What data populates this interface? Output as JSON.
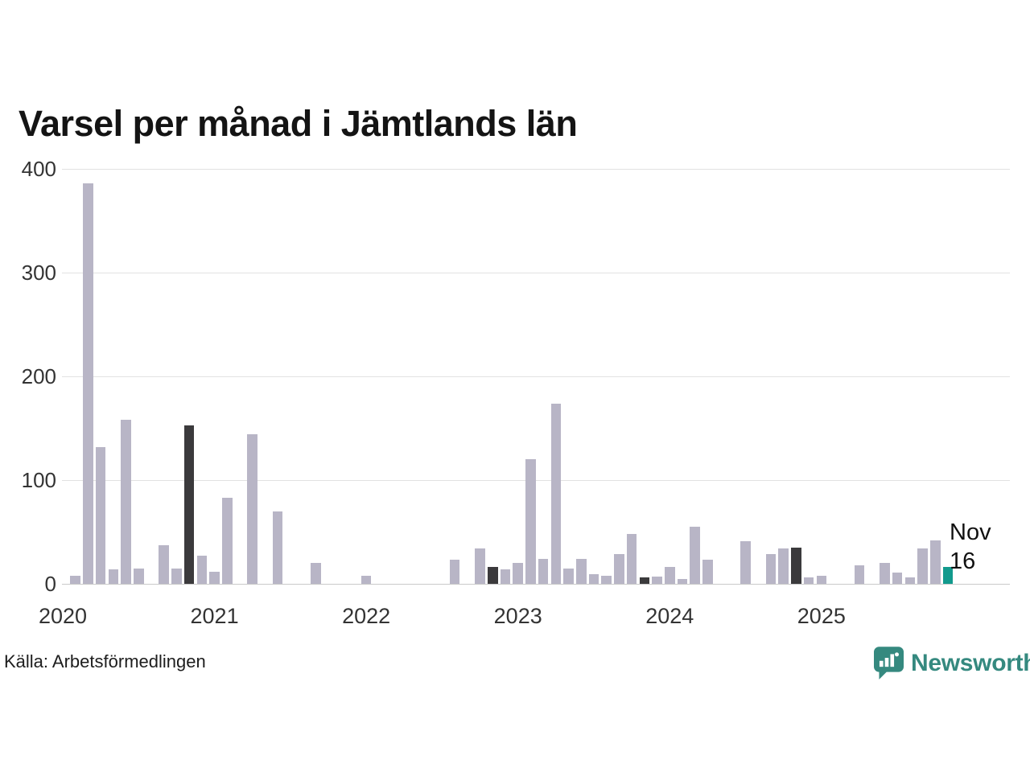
{
  "page": {
    "title": "Varsel per månad i Jämtlands län",
    "source": "Källa: Arbetsförmedlingen",
    "logo_text": "Newsworthy"
  },
  "annotation": {
    "line1": "Nov",
    "line2": "16"
  },
  "colors": {
    "bar_default": "#b8b5c6",
    "bar_highlight_past": "#3b3a3c",
    "bar_highlight_current": "#129a8d",
    "gridline": "#e2e2e2",
    "baseline": "#c9c9c9",
    "logo": "#35897f"
  },
  "chart_data": {
    "type": "bar",
    "title": "Varsel per månad i Jämtlands län",
    "ylabel": "",
    "xlabel": "",
    "ylim": [
      0,
      400
    ],
    "yticks": [
      0,
      100,
      200,
      300,
      400
    ],
    "grid": "horizontal",
    "legend_position": "none",
    "xtick_years": [
      "2020",
      "2021",
      "2022",
      "2023",
      "2024",
      "2025"
    ],
    "months": [
      "2020-01",
      "2020-02",
      "2020-03",
      "2020-04",
      "2020-05",
      "2020-06",
      "2020-07",
      "2020-08",
      "2020-09",
      "2020-10",
      "2020-11",
      "2020-12",
      "2021-01",
      "2021-02",
      "2021-03",
      "2021-04",
      "2021-05",
      "2021-06",
      "2021-07",
      "2021-08",
      "2021-09",
      "2021-10",
      "2021-11",
      "2021-12",
      "2022-01",
      "2022-02",
      "2022-03",
      "2022-04",
      "2022-05",
      "2022-06",
      "2022-07",
      "2022-08",
      "2022-09",
      "2022-10",
      "2022-11",
      "2022-12",
      "2023-01",
      "2023-02",
      "2023-03",
      "2023-04",
      "2023-05",
      "2023-06",
      "2023-07",
      "2023-08",
      "2023-09",
      "2023-10",
      "2023-11",
      "2023-12",
      "2024-01",
      "2024-02",
      "2024-03",
      "2024-04",
      "2024-05",
      "2024-06",
      "2024-07",
      "2024-08",
      "2024-09",
      "2024-10",
      "2024-11",
      "2024-12",
      "2025-01",
      "2025-02",
      "2025-03",
      "2025-04",
      "2025-05",
      "2025-06",
      "2025-07",
      "2025-08",
      "2025-09",
      "2025-10",
      "2025-11"
    ],
    "values": [
      0,
      8,
      386,
      132,
      14,
      158,
      15,
      0,
      37,
      15,
      153,
      27,
      12,
      83,
      0,
      144,
      0,
      70,
      0,
      0,
      20,
      0,
      0,
      0,
      8,
      0,
      0,
      0,
      0,
      0,
      0,
      23,
      0,
      34,
      16,
      14,
      20,
      120,
      24,
      174,
      15,
      24,
      9,
      8,
      29,
      48,
      6,
      7,
      16,
      5,
      55,
      23,
      0,
      0,
      41,
      0,
      29,
      34,
      35,
      6,
      8,
      0,
      0,
      18,
      0,
      20,
      11,
      6,
      34,
      42,
      16
    ],
    "highlight_dark_months": [
      "2020-11",
      "2022-11",
      "2023-11",
      "2024-11"
    ],
    "highlight_current_month": "2025-11",
    "current_month_label": "Nov 16"
  }
}
